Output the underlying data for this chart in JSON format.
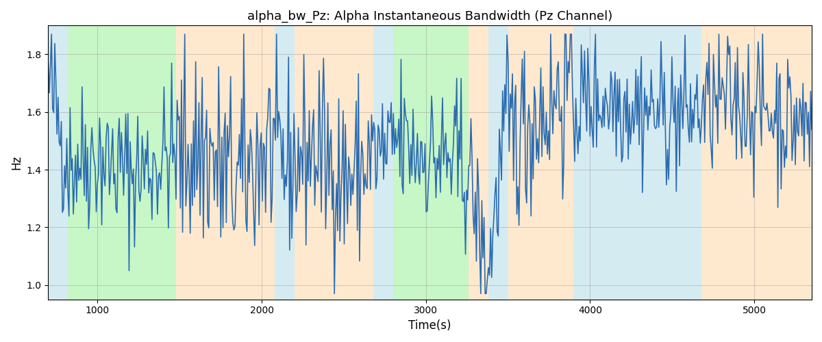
{
  "title": "alpha_bw_Pz: Alpha Instantaneous Bandwidth (Pz Channel)",
  "xlabel": "Time(s)",
  "ylabel": "Hz",
  "ylim": [
    0.95,
    1.9
  ],
  "xlim": [
    700,
    5350
  ],
  "line_color": "#2b6cb0",
  "line_width": 1.2,
  "bg_regions": [
    {
      "xstart": 700,
      "xend": 820,
      "color": "#add8e6",
      "alpha": 0.5
    },
    {
      "xstart": 820,
      "xend": 1480,
      "color": "#90ee90",
      "alpha": 0.5
    },
    {
      "xstart": 1480,
      "xend": 2080,
      "color": "#ffd59e",
      "alpha": 0.5
    },
    {
      "xstart": 2080,
      "xend": 2200,
      "color": "#add8e6",
      "alpha": 0.5
    },
    {
      "xstart": 2200,
      "xend": 2680,
      "color": "#ffd59e",
      "alpha": 0.5
    },
    {
      "xstart": 2680,
      "xend": 2800,
      "color": "#add8e6",
      "alpha": 0.5
    },
    {
      "xstart": 2800,
      "xend": 3260,
      "color": "#90ee90",
      "alpha": 0.5
    },
    {
      "xstart": 3260,
      "xend": 3380,
      "color": "#ffd59e",
      "alpha": 0.5
    },
    {
      "xstart": 3380,
      "xend": 3500,
      "color": "#add8e6",
      "alpha": 0.5
    },
    {
      "xstart": 3500,
      "xend": 3900,
      "color": "#ffd59e",
      "alpha": 0.5
    },
    {
      "xstart": 3900,
      "xend": 4680,
      "color": "#add8e6",
      "alpha": 0.5
    },
    {
      "xstart": 4680,
      "xend": 5350,
      "color": "#ffd59e",
      "alpha": 0.5
    }
  ],
  "yticks": [
    1.0,
    1.2,
    1.4,
    1.6,
    1.8
  ],
  "xticks": [
    1000,
    2000,
    3000,
    4000,
    5000
  ],
  "seed": 42,
  "n_points": 700
}
